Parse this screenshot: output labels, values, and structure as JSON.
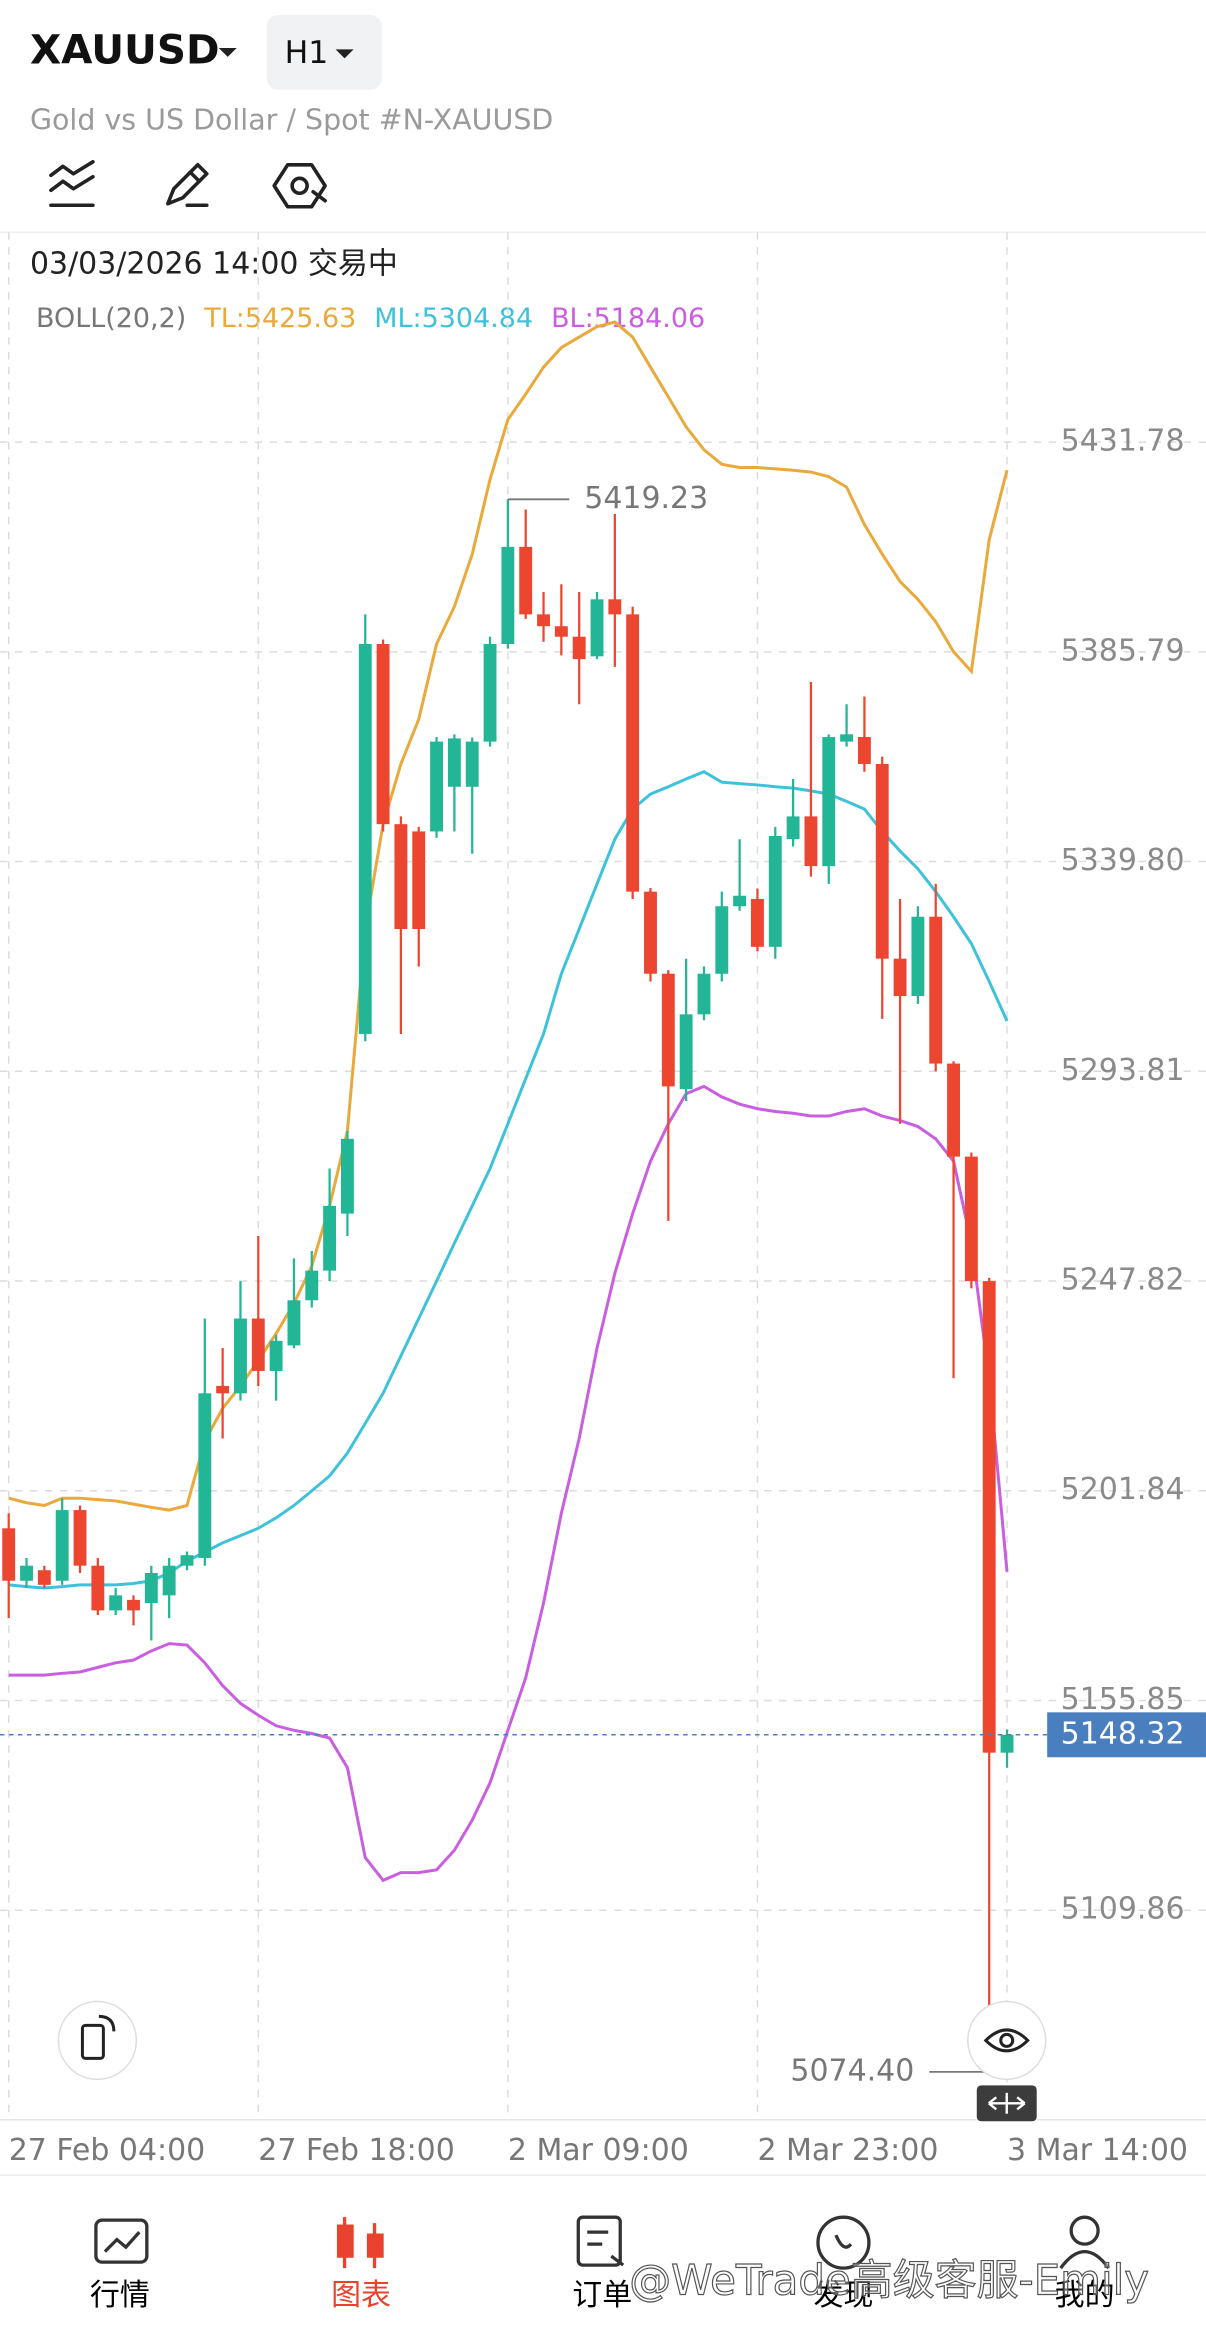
{
  "header": {
    "symbol": "XAUUSD",
    "timeframe": "H1",
    "description": "Gold vs US Dollar / Spot #N-XAUUSD"
  },
  "chart_data": {
    "type": "candlestick",
    "status_line": "03/03/2026 14:00 交易中",
    "indicator": "BOLL(20,2)",
    "categories": [
      "27 Feb 04:00",
      null,
      null,
      null,
      null,
      null,
      null,
      null,
      null,
      null,
      null,
      null,
      null,
      null,
      "27 Feb 18:00",
      null,
      null,
      null,
      null,
      null,
      null,
      null,
      null,
      null,
      null,
      null,
      null,
      null,
      "2 Mar 09:00",
      null,
      null,
      null,
      null,
      null,
      null,
      null,
      null,
      null,
      null,
      null,
      null,
      null,
      "2 Mar 23:00",
      null,
      null,
      null,
      null,
      null,
      null,
      null,
      null,
      null,
      null,
      null,
      null,
      null,
      "3 Mar 14:00"
    ],
    "open": [
      5193.6,
      5182.1,
      5184.4,
      5182.1,
      5197.6,
      5185.4,
      5175.6,
      5177.9,
      5177.2,
      5178.9,
      5185.4,
      5187.1,
      5224.8,
      5223.2,
      5239.6,
      5228.1,
      5233.7,
      5243.6,
      5250.1,
      5262.6,
      5302.0,
      5387.5,
      5348.0,
      5346.4,
      5346.4,
      5356.2,
      5356.2,
      5366.1,
      5387.5,
      5408.8,
      5394.0,
      5391.4,
      5389.1,
      5384.8,
      5397.3,
      5394.0,
      5333.2,
      5315.2,
      5289.9,
      5306.3,
      5315.2,
      5330.0,
      5331.6,
      5321.1,
      5344.7,
      5349.7,
      5338.8,
      5366.1,
      5367.1,
      5361.2,
      5318.5,
      5310.3,
      5327.7,
      5295.5,
      5275.1,
      5247.8,
      5144.4
    ],
    "high": [
      5196.9,
      5187.1,
      5185.4,
      5200.2,
      5198.6,
      5187.1,
      5180.5,
      5178.9,
      5185.4,
      5187.1,
      5188.5,
      5239.6,
      5233.1,
      5247.8,
      5257.7,
      5236.0,
      5252.8,
      5254.4,
      5272.5,
      5280.7,
      5394.0,
      5388.5,
      5349.7,
      5347.4,
      5367.1,
      5367.7,
      5367.0,
      5389.1,
      5419.23,
      5417.0,
      5398.9,
      5400.6,
      5398.9,
      5398.9,
      5416.0,
      5395.7,
      5334.0,
      5316.0,
      5318.5,
      5316.8,
      5333.2,
      5344.7,
      5333.9,
      5347.4,
      5357.9,
      5379.2,
      5367.7,
      5374.3,
      5376.0,
      5362.8,
      5331.6,
      5330.0,
      5334.9,
      5296.0,
      5276.0,
      5248.5,
      5149.5
    ],
    "low": [
      5173.9,
      5180.5,
      5180.5,
      5181.2,
      5183.8,
      5174.6,
      5174.6,
      5172.3,
      5169.0,
      5173.9,
      5184.4,
      5185.4,
      5213.3,
      5221.6,
      5224.8,
      5221.6,
      5233.1,
      5242.0,
      5247.8,
      5257.7,
      5300.4,
      5346.4,
      5302.0,
      5316.8,
      5345.0,
      5346.4,
      5341.5,
      5365.0,
      5386.5,
      5393.0,
      5388.0,
      5385.0,
      5374.3,
      5384.2,
      5382.5,
      5331.6,
      5313.5,
      5261.0,
      5287.3,
      5305.0,
      5313.5,
      5329.0,
      5320.1,
      5318.5,
      5343.1,
      5336.5,
      5334.9,
      5365.0,
      5359.5,
      5305.3,
      5282.3,
      5308.6,
      5293.8,
      5226.5,
      5246.2,
      5074.4,
      5141.1
    ],
    "close": [
      5182.1,
      5185.4,
      5181.2,
      5197.6,
      5185.4,
      5175.6,
      5178.9,
      5175.6,
      5183.8,
      5185.4,
      5187.7,
      5223.2,
      5223.2,
      5239.6,
      5228.1,
      5234.7,
      5243.6,
      5250.1,
      5264.3,
      5279.0,
      5387.5,
      5348.0,
      5325.0,
      5325.0,
      5366.1,
      5366.8,
      5366.1,
      5387.5,
      5408.8,
      5394.0,
      5391.4,
      5389.1,
      5384.2,
      5397.3,
      5394.0,
      5333.2,
      5315.2,
      5290.5,
      5306.3,
      5315.2,
      5330.0,
      5332.3,
      5321.1,
      5345.4,
      5349.7,
      5338.8,
      5367.1,
      5367.7,
      5361.2,
      5318.5,
      5310.3,
      5327.7,
      5295.5,
      5275.1,
      5247.8,
      5144.4,
      5148.32
    ],
    "up_color": "#22b696",
    "down_color": "#ec4530",
    "series": [
      {
        "name": "TL:",
        "color": "#e9a93b",
        "values": [
          5200.2,
          5199.2,
          5198.6,
          5200.2,
          5200.2,
          5199.9,
          5199.6,
          5198.9,
          5198.2,
          5197.6,
          5198.6,
          5212.7,
          5219.9,
          5224.8,
          5230.4,
          5236.3,
          5242.9,
          5251.1,
          5264.3,
          5280.7,
          5325.0,
          5348.0,
          5361.2,
          5371.0,
          5387.5,
          5395.7,
          5407.2,
          5423.6,
          5436.7,
          5442.3,
          5448.2,
          5452.5,
          5454.8,
          5457.1,
          5458.1,
          5454.8,
          5448.2,
          5441.7,
          5435.1,
          5430.1,
          5426.9,
          5426.2,
          5426.2,
          5425.9,
          5425.6,
          5425.2,
          5424.2,
          5421.9,
          5413.7,
          5407.2,
          5401.2,
          5397.3,
          5392.4,
          5385.8,
          5381.5,
          5410.4,
          5425.63
        ]
      },
      {
        "name": "ML:",
        "color": "#3ec2dc",
        "values": [
          5181.2,
          5180.8,
          5180.5,
          5180.8,
          5181.2,
          5181.2,
          5181.2,
          5181.5,
          5182.1,
          5183.8,
          5186.4,
          5188.4,
          5190.4,
          5192.0,
          5193.6,
          5195.9,
          5198.6,
          5201.8,
          5205.1,
          5210.1,
          5216.6,
          5223.2,
          5231.4,
          5239.6,
          5247.8,
          5256.1,
          5264.3,
          5272.5,
          5282.3,
          5292.2,
          5302.0,
          5315.2,
          5325.0,
          5334.9,
          5344.7,
          5351.3,
          5354.6,
          5356.2,
          5357.9,
          5359.5,
          5357.2,
          5356.9,
          5356.6,
          5356.2,
          5355.9,
          5355.3,
          5354.6,
          5353.0,
          5351.3,
          5346.4,
          5342.1,
          5338.2,
          5333.2,
          5327.7,
          5321.8,
          5313.5,
          5304.84
        ]
      },
      {
        "name": "BL:",
        "color": "#c95ee0",
        "values": [
          5161.4,
          5161.4,
          5161.4,
          5161.8,
          5162.1,
          5163.1,
          5164.1,
          5164.7,
          5166.7,
          5168.3,
          5168.0,
          5164.1,
          5159.1,
          5155.2,
          5152.6,
          5150.3,
          5149.3,
          5148.6,
          5147.6,
          5141.1,
          5121.4,
          5116.4,
          5118.1,
          5118.1,
          5118.7,
          5123.0,
          5129.6,
          5137.8,
          5149.3,
          5160.8,
          5177.2,
          5196.9,
          5213.3,
          5233.1,
          5249.5,
          5262.6,
          5274.1,
          5282.3,
          5288.9,
          5290.5,
          5288.2,
          5286.6,
          5285.6,
          5285.0,
          5284.6,
          5284.0,
          5284.0,
          5285.0,
          5285.6,
          5284.0,
          5283.0,
          5281.7,
          5279.0,
          5274.1,
          5256.1,
          5226.5,
          5184.06
        ]
      }
    ],
    "ylim": [
      5063.9,
      5477.8
    ],
    "yticks": [
      5431.78,
      5385.79,
      {
        "value": 5339.8,
        "label": "5339.80"
      },
      5293.81,
      5247.82,
      5201.84,
      5155.85,
      5109.86
    ],
    "grid": true,
    "price_tag_color": "#4a7fbf",
    "min_label": {
      "value": 5074.4,
      "label": "5074.40"
    }
  },
  "nav": {
    "items": [
      "行情",
      "图表",
      "订单",
      "发现",
      "我的"
    ],
    "active": 1,
    "active_color": "#e8432e"
  },
  "watermark": "@WeTrade高级客服-Emily"
}
